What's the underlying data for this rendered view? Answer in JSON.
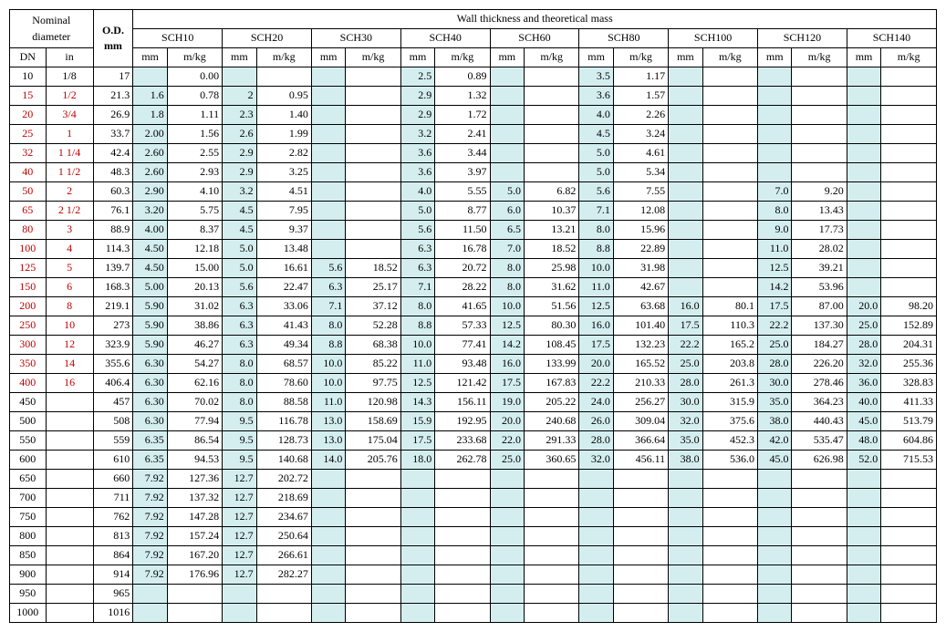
{
  "header": {
    "nominal_diameter": "Nominal diameter",
    "od": "O.D.",
    "od_unit": "mm",
    "wall_title": "Wall thickness and theoretical mass",
    "dn": "DN",
    "in": "in",
    "mm": "mm",
    "mkg": "m/kg"
  },
  "schedules": [
    "SCH10",
    "SCH20",
    "SCH30",
    "SCH40",
    "SCH60",
    "SCH80",
    "SCH100",
    "SCH120",
    "SCH140"
  ],
  "colors": {
    "red_text": "#c00000",
    "mm_bg": "#d4eef0",
    "border": "#000000"
  },
  "rows": [
    {
      "dn": "10",
      "in": "1/8",
      "red": false,
      "od": "17",
      "s": [
        [
          "",
          "0.00"
        ],
        [
          "",
          ""
        ],
        [
          "",
          ""
        ],
        [
          "2.5",
          "0.89"
        ],
        [
          "",
          ""
        ],
        [
          "3.5",
          "1.17"
        ],
        [
          "",
          ""
        ],
        [
          "",
          ""
        ],
        [
          "",
          ""
        ]
      ]
    },
    {
      "dn": "15",
      "in": "1/2",
      "red": true,
      "od": "21.3",
      "s": [
        [
          "1.6",
          "0.78"
        ],
        [
          "2",
          "0.95"
        ],
        [
          "",
          ""
        ],
        [
          "2.9",
          "1.32"
        ],
        [
          "",
          ""
        ],
        [
          "3.6",
          "1.57"
        ],
        [
          "",
          ""
        ],
        [
          "",
          ""
        ],
        [
          "",
          ""
        ]
      ]
    },
    {
      "dn": "20",
      "in": "3/4",
      "red": true,
      "od": "26.9",
      "s": [
        [
          "1.8",
          "1.11"
        ],
        [
          "2.3",
          "1.40"
        ],
        [
          "",
          ""
        ],
        [
          "2.9",
          "1.72"
        ],
        [
          "",
          ""
        ],
        [
          "4.0",
          "2.26"
        ],
        [
          "",
          ""
        ],
        [
          "",
          ""
        ],
        [
          "",
          ""
        ]
      ]
    },
    {
      "dn": "25",
      "in": "1",
      "red": true,
      "od": "33.7",
      "s": [
        [
          "2.00",
          "1.56"
        ],
        [
          "2.6",
          "1.99"
        ],
        [
          "",
          ""
        ],
        [
          "3.2",
          "2.41"
        ],
        [
          "",
          ""
        ],
        [
          "4.5",
          "3.24"
        ],
        [
          "",
          ""
        ],
        [
          "",
          ""
        ],
        [
          "",
          ""
        ]
      ]
    },
    {
      "dn": "32",
      "in": "1 1/4",
      "red": true,
      "od": "42.4",
      "s": [
        [
          "2.60",
          "2.55"
        ],
        [
          "2.9",
          "2.82"
        ],
        [
          "",
          ""
        ],
        [
          "3.6",
          "3.44"
        ],
        [
          "",
          ""
        ],
        [
          "5.0",
          "4.61"
        ],
        [
          "",
          ""
        ],
        [
          "",
          ""
        ],
        [
          "",
          ""
        ]
      ]
    },
    {
      "dn": "40",
      "in": "1 1/2",
      "red": true,
      "od": "48.3",
      "s": [
        [
          "2.60",
          "2.93"
        ],
        [
          "2.9",
          "3.25"
        ],
        [
          "",
          ""
        ],
        [
          "3.6",
          "3.97"
        ],
        [
          "",
          ""
        ],
        [
          "5.0",
          "5.34"
        ],
        [
          "",
          ""
        ],
        [
          "",
          ""
        ],
        [
          "",
          ""
        ]
      ]
    },
    {
      "dn": "50",
      "in": "2",
      "red": true,
      "od": "60.3",
      "s": [
        [
          "2.90",
          "4.10"
        ],
        [
          "3.2",
          "4.51"
        ],
        [
          "",
          ""
        ],
        [
          "4.0",
          "5.55"
        ],
        [
          "5.0",
          "6.82"
        ],
        [
          "5.6",
          "7.55"
        ],
        [
          "",
          ""
        ],
        [
          "7.0",
          "9.20"
        ],
        [
          "",
          ""
        ]
      ]
    },
    {
      "dn": "65",
      "in": "2 1/2",
      "red": true,
      "od": "76.1",
      "s": [
        [
          "3.20",
          "5.75"
        ],
        [
          "4.5",
          "7.95"
        ],
        [
          "",
          ""
        ],
        [
          "5.0",
          "8.77"
        ],
        [
          "6.0",
          "10.37"
        ],
        [
          "7.1",
          "12.08"
        ],
        [
          "",
          ""
        ],
        [
          "8.0",
          "13.43"
        ],
        [
          "",
          ""
        ]
      ]
    },
    {
      "dn": "80",
      "in": "3",
      "red": true,
      "od": "88.9",
      "s": [
        [
          "4.00",
          "8.37"
        ],
        [
          "4.5",
          "9.37"
        ],
        [
          "",
          ""
        ],
        [
          "5.6",
          "11.50"
        ],
        [
          "6.5",
          "13.21"
        ],
        [
          "8.0",
          "15.96"
        ],
        [
          "",
          ""
        ],
        [
          "9.0",
          "17.73"
        ],
        [
          "",
          ""
        ]
      ]
    },
    {
      "dn": "100",
      "in": "4",
      "red": true,
      "od": "114.3",
      "s": [
        [
          "4.50",
          "12.18"
        ],
        [
          "5.0",
          "13.48"
        ],
        [
          "",
          ""
        ],
        [
          "6.3",
          "16.78"
        ],
        [
          "7.0",
          "18.52"
        ],
        [
          "8.8",
          "22.89"
        ],
        [
          "",
          ""
        ],
        [
          "11.0",
          "28.02"
        ],
        [
          "",
          ""
        ]
      ]
    },
    {
      "dn": "125",
      "in": "5",
      "red": true,
      "od": "139.7",
      "s": [
        [
          "4.50",
          "15.00"
        ],
        [
          "5.0",
          "16.61"
        ],
        [
          "5.6",
          "18.52"
        ],
        [
          "6.3",
          "20.72"
        ],
        [
          "8.0",
          "25.98"
        ],
        [
          "10.0",
          "31.98"
        ],
        [
          "",
          ""
        ],
        [
          "12.5",
          "39.21"
        ],
        [
          "",
          ""
        ]
      ]
    },
    {
      "dn": "150",
      "in": "6",
      "red": true,
      "od": "168.3",
      "s": [
        [
          "5.00",
          "20.13"
        ],
        [
          "5.6",
          "22.47"
        ],
        [
          "6.3",
          "25.17"
        ],
        [
          "7.1",
          "28.22"
        ],
        [
          "8.0",
          "31.62"
        ],
        [
          "11.0",
          "42.67"
        ],
        [
          "",
          ""
        ],
        [
          "14.2",
          "53.96"
        ],
        [
          "",
          ""
        ]
      ]
    },
    {
      "dn": "200",
      "in": "8",
      "red": true,
      "od": "219.1",
      "s": [
        [
          "5.90",
          "31.02"
        ],
        [
          "6.3",
          "33.06"
        ],
        [
          "7.1",
          "37.12"
        ],
        [
          "8.0",
          "41.65"
        ],
        [
          "10.0",
          "51.56"
        ],
        [
          "12.5",
          "63.68"
        ],
        [
          "16.0",
          "80.1"
        ],
        [
          "17.5",
          "87.00"
        ],
        [
          "20.0",
          "98.20"
        ]
      ]
    },
    {
      "dn": "250",
      "in": "10",
      "red": true,
      "od": "273",
      "s": [
        [
          "5.90",
          "38.86"
        ],
        [
          "6.3",
          "41.43"
        ],
        [
          "8.0",
          "52.28"
        ],
        [
          "8.8",
          "57.33"
        ],
        [
          "12.5",
          "80.30"
        ],
        [
          "16.0",
          "101.40"
        ],
        [
          "17.5",
          "110.3"
        ],
        [
          "22.2",
          "137.30"
        ],
        [
          "25.0",
          "152.89"
        ]
      ]
    },
    {
      "dn": "300",
      "in": "12",
      "red": true,
      "od": "323.9",
      "s": [
        [
          "5.90",
          "46.27"
        ],
        [
          "6.3",
          "49.34"
        ],
        [
          "8.8",
          "68.38"
        ],
        [
          "10.0",
          "77.41"
        ],
        [
          "14.2",
          "108.45"
        ],
        [
          "17.5",
          "132.23"
        ],
        [
          "22.2",
          "165.2"
        ],
        [
          "25.0",
          "184.27"
        ],
        [
          "28.0",
          "204.31"
        ]
      ]
    },
    {
      "dn": "350",
      "in": "14",
      "red": true,
      "od": "355.6",
      "s": [
        [
          "6.30",
          "54.27"
        ],
        [
          "8.0",
          "68.57"
        ],
        [
          "10.0",
          "85.22"
        ],
        [
          "11.0",
          "93.48"
        ],
        [
          "16.0",
          "133.99"
        ],
        [
          "20.0",
          "165.52"
        ],
        [
          "25.0",
          "203.8"
        ],
        [
          "28.0",
          "226.20"
        ],
        [
          "32.0",
          "255.36"
        ]
      ]
    },
    {
      "dn": "400",
      "in": "16",
      "red": true,
      "od": "406.4",
      "s": [
        [
          "6.30",
          "62.16"
        ],
        [
          "8.0",
          "78.60"
        ],
        [
          "10.0",
          "97.75"
        ],
        [
          "12.5",
          "121.42"
        ],
        [
          "17.5",
          "167.83"
        ],
        [
          "22.2",
          "210.33"
        ],
        [
          "28.0",
          "261.3"
        ],
        [
          "30.0",
          "278.46"
        ],
        [
          "36.0",
          "328.83"
        ]
      ]
    },
    {
      "dn": "450",
      "in": "",
      "red": false,
      "od": "457",
      "s": [
        [
          "6.30",
          "70.02"
        ],
        [
          "8.0",
          "88.58"
        ],
        [
          "11.0",
          "120.98"
        ],
        [
          "14.3",
          "156.11"
        ],
        [
          "19.0",
          "205.22"
        ],
        [
          "24.0",
          "256.27"
        ],
        [
          "30.0",
          "315.9"
        ],
        [
          "35.0",
          "364.23"
        ],
        [
          "40.0",
          "411.33"
        ]
      ]
    },
    {
      "dn": "500",
      "in": "",
      "red": false,
      "od": "508",
      "s": [
        [
          "6.30",
          "77.94"
        ],
        [
          "9.5",
          "116.78"
        ],
        [
          "13.0",
          "158.69"
        ],
        [
          "15.9",
          "192.95"
        ],
        [
          "20.0",
          "240.68"
        ],
        [
          "26.0",
          "309.04"
        ],
        [
          "32.0",
          "375.6"
        ],
        [
          "38.0",
          "440.43"
        ],
        [
          "45.0",
          "513.79"
        ]
      ]
    },
    {
      "dn": "550",
      "in": "",
      "red": false,
      "od": "559",
      "s": [
        [
          "6.35",
          "86.54"
        ],
        [
          "9.5",
          "128.73"
        ],
        [
          "13.0",
          "175.04"
        ],
        [
          "17.5",
          "233.68"
        ],
        [
          "22.0",
          "291.33"
        ],
        [
          "28.0",
          "366.64"
        ],
        [
          "35.0",
          "452.3"
        ],
        [
          "42.0",
          "535.47"
        ],
        [
          "48.0",
          "604.86"
        ]
      ]
    },
    {
      "dn": "600",
      "in": "",
      "red": false,
      "od": "610",
      "s": [
        [
          "6.35",
          "94.53"
        ],
        [
          "9.5",
          "140.68"
        ],
        [
          "14.0",
          "205.76"
        ],
        [
          "18.0",
          "262.78"
        ],
        [
          "25.0",
          "360.65"
        ],
        [
          "32.0",
          "456.11"
        ],
        [
          "38.0",
          "536.0"
        ],
        [
          "45.0",
          "626.98"
        ],
        [
          "52.0",
          "715.53"
        ]
      ]
    },
    {
      "dn": "650",
      "in": "",
      "red": false,
      "od": "660",
      "s": [
        [
          "7.92",
          "127.36"
        ],
        [
          "12.7",
          "202.72"
        ],
        [
          "",
          ""
        ],
        [
          "",
          ""
        ],
        [
          "",
          ""
        ],
        [
          "",
          ""
        ],
        [
          "",
          ""
        ],
        [
          "",
          ""
        ],
        [
          "",
          ""
        ]
      ]
    },
    {
      "dn": "700",
      "in": "",
      "red": false,
      "od": "711",
      "s": [
        [
          "7.92",
          "137.32"
        ],
        [
          "12.7",
          "218.69"
        ],
        [
          "",
          ""
        ],
        [
          "",
          ""
        ],
        [
          "",
          ""
        ],
        [
          "",
          ""
        ],
        [
          "",
          ""
        ],
        [
          "",
          ""
        ],
        [
          "",
          ""
        ]
      ]
    },
    {
      "dn": "750",
      "in": "",
      "red": false,
      "od": "762",
      "s": [
        [
          "7.92",
          "147.28"
        ],
        [
          "12.7",
          "234.67"
        ],
        [
          "",
          ""
        ],
        [
          "",
          ""
        ],
        [
          "",
          ""
        ],
        [
          "",
          ""
        ],
        [
          "",
          ""
        ],
        [
          "",
          ""
        ],
        [
          "",
          ""
        ]
      ]
    },
    {
      "dn": "800",
      "in": "",
      "red": false,
      "od": "813",
      "s": [
        [
          "7.92",
          "157.24"
        ],
        [
          "12.7",
          "250.64"
        ],
        [
          "",
          ""
        ],
        [
          "",
          ""
        ],
        [
          "",
          ""
        ],
        [
          "",
          ""
        ],
        [
          "",
          ""
        ],
        [
          "",
          ""
        ],
        [
          "",
          ""
        ]
      ]
    },
    {
      "dn": "850",
      "in": "",
      "red": false,
      "od": "864",
      "s": [
        [
          "7.92",
          "167.20"
        ],
        [
          "12.7",
          "266.61"
        ],
        [
          "",
          ""
        ],
        [
          "",
          ""
        ],
        [
          "",
          ""
        ],
        [
          "",
          ""
        ],
        [
          "",
          ""
        ],
        [
          "",
          ""
        ],
        [
          "",
          ""
        ]
      ]
    },
    {
      "dn": "900",
      "in": "",
      "red": false,
      "od": "914",
      "s": [
        [
          "7.92",
          "176.96"
        ],
        [
          "12.7",
          "282.27"
        ],
        [
          "",
          ""
        ],
        [
          "",
          ""
        ],
        [
          "",
          ""
        ],
        [
          "",
          ""
        ],
        [
          "",
          ""
        ],
        [
          "",
          ""
        ],
        [
          "",
          ""
        ]
      ]
    },
    {
      "dn": "950",
      "in": "",
      "red": false,
      "od": "965",
      "s": [
        [
          "",
          ""
        ],
        [
          "",
          ""
        ],
        [
          "",
          ""
        ],
        [
          "",
          ""
        ],
        [
          "",
          ""
        ],
        [
          "",
          ""
        ],
        [
          "",
          ""
        ],
        [
          "",
          ""
        ],
        [
          "",
          ""
        ]
      ]
    },
    {
      "dn": "1000",
      "in": "",
      "red": false,
      "od": "1016",
      "s": [
        [
          "",
          ""
        ],
        [
          "",
          ""
        ],
        [
          "",
          ""
        ],
        [
          "",
          ""
        ],
        [
          "",
          ""
        ],
        [
          "",
          ""
        ],
        [
          "",
          ""
        ],
        [
          "",
          ""
        ],
        [
          "",
          ""
        ]
      ]
    }
  ]
}
